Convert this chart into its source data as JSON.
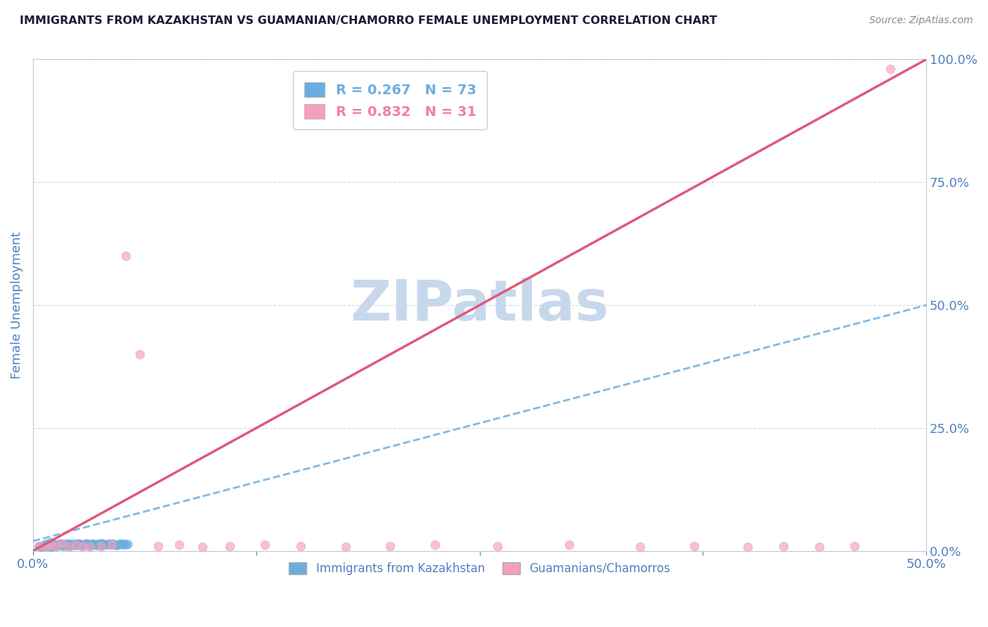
{
  "title": "IMMIGRANTS FROM KAZAKHSTAN VS GUAMANIAN/CHAMORRO FEMALE UNEMPLOYMENT CORRELATION CHART",
  "source_text": "Source: ZipAtlas.com",
  "ylabel": "Female Unemployment",
  "xlim": [
    0.0,
    0.5
  ],
  "ylim": [
    0.0,
    1.0
  ],
  "legend_entries": [
    {
      "label": "R = 0.267   N = 73",
      "color": "#6aaee0"
    },
    {
      "label": "R = 0.832   N = 31",
      "color": "#f080a0"
    }
  ],
  "bottom_legend_labels": [
    "Immigrants from Kazakhstan",
    "Guamanians/Chamorros"
  ],
  "watermark": "ZIPatlas",
  "watermark_color": "#c8d8ec",
  "title_color": "#1a1a3a",
  "axis_label_color": "#5080c0",
  "tick_color": "#5080c0",
  "grid_color": "#d0d8e8",
  "background_color": "#ffffff",
  "blue_scatter_color": "#6aaee0",
  "pink_scatter_color": "#f4a0b8",
  "blue_line_color": "#6aaee0",
  "pink_line_color": "#e05878",
  "blue_scatter_x": [
    0.003,
    0.005,
    0.006,
    0.007,
    0.008,
    0.009,
    0.01,
    0.01,
    0.01,
    0.011,
    0.012,
    0.013,
    0.014,
    0.015,
    0.015,
    0.016,
    0.017,
    0.018,
    0.019,
    0.02,
    0.02,
    0.021,
    0.022,
    0.023,
    0.024,
    0.025,
    0.026,
    0.027,
    0.028,
    0.029,
    0.03,
    0.031,
    0.032,
    0.033,
    0.034,
    0.035,
    0.036,
    0.037,
    0.038,
    0.039,
    0.04,
    0.041,
    0.042,
    0.043,
    0.044,
    0.045,
    0.046,
    0.047,
    0.048,
    0.049,
    0.05,
    0.051,
    0.052,
    0.053,
    0.004,
    0.006,
    0.008,
    0.01,
    0.012,
    0.014,
    0.016,
    0.018,
    0.02,
    0.022,
    0.024,
    0.026,
    0.028,
    0.03,
    0.032,
    0.034,
    0.036,
    0.038,
    0.04
  ],
  "blue_scatter_y": [
    0.01,
    0.008,
    0.012,
    0.009,
    0.015,
    0.011,
    0.013,
    0.007,
    0.018,
    0.01,
    0.014,
    0.009,
    0.012,
    0.011,
    0.016,
    0.013,
    0.01,
    0.015,
    0.012,
    0.014,
    0.009,
    0.013,
    0.011,
    0.016,
    0.012,
    0.015,
    0.013,
    0.01,
    0.014,
    0.012,
    0.016,
    0.013,
    0.011,
    0.015,
    0.012,
    0.014,
    0.013,
    0.016,
    0.011,
    0.015,
    0.012,
    0.014,
    0.013,
    0.016,
    0.012,
    0.015,
    0.013,
    0.011,
    0.014,
    0.016,
    0.013,
    0.015,
    0.012,
    0.014,
    0.008,
    0.01,
    0.012,
    0.015,
    0.013,
    0.011,
    0.014,
    0.012,
    0.016,
    0.013,
    0.011,
    0.015,
    0.013,
    0.016,
    0.012,
    0.014,
    0.011,
    0.015,
    0.013
  ],
  "pink_scatter_x": [
    0.003,
    0.007,
    0.01,
    0.013,
    0.016,
    0.02,
    0.024,
    0.028,
    0.032,
    0.038,
    0.044,
    0.052,
    0.06,
    0.07,
    0.082,
    0.095,
    0.11,
    0.13,
    0.15,
    0.175,
    0.2,
    0.225,
    0.26,
    0.3,
    0.34,
    0.37,
    0.4,
    0.42,
    0.44,
    0.46,
    0.48
  ],
  "pink_scatter_y": [
    0.01,
    0.008,
    0.012,
    0.01,
    0.015,
    0.008,
    0.012,
    0.01,
    0.008,
    0.01,
    0.012,
    0.6,
    0.4,
    0.01,
    0.012,
    0.008,
    0.01,
    0.012,
    0.01,
    0.008,
    0.01,
    0.012,
    0.01,
    0.012,
    0.008,
    0.01,
    0.008,
    0.01,
    0.008,
    0.01,
    0.98
  ],
  "blue_line_x": [
    0.0,
    0.5
  ],
  "blue_line_y": [
    0.02,
    0.5
  ],
  "pink_line_x": [
    0.0,
    0.5
  ],
  "pink_line_y": [
    0.0,
    1.0
  ]
}
